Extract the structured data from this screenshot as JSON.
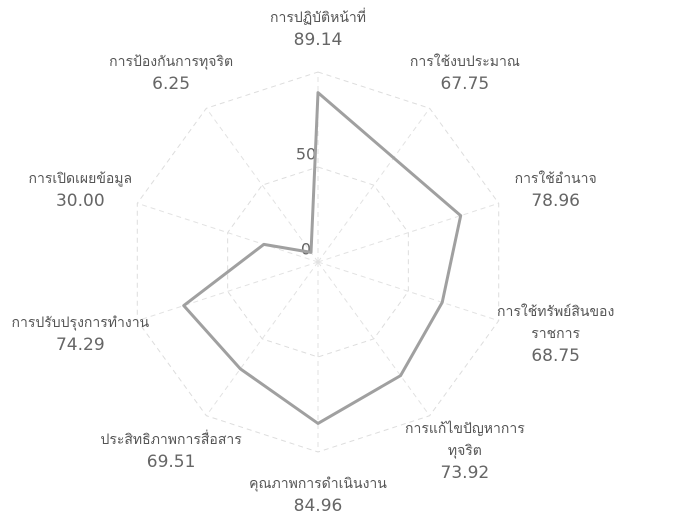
{
  "chart_data": {
    "type": "radar",
    "categories": [
      "การปฏิบัติหน้าที่",
      "การใช้งบประมาณ",
      "การใช้อำนาจ",
      "การใช้ทรัพย์สินของราชการ",
      "การแก้ไขปัญหาการทุจริต",
      "คุณภาพการดำเนินงาน",
      "ประสิทธิภาพการสื่อสาร",
      "การปรับปรุงการทำงาน",
      "การเปิดเผยข้อมูล",
      "การป้องกันการทุจริต"
    ],
    "values": [
      89.14,
      67.75,
      78.96,
      68.75,
      73.92,
      84.96,
      69.51,
      74.29,
      30.0,
      6.25
    ],
    "value_labels": [
      "89.14",
      "67.75",
      "78.96",
      "68.75",
      "73.92",
      "84.96",
      "69.51",
      "74.29",
      "30.00",
      "6.25"
    ],
    "color": "#a0a0a0",
    "ylim": [
      0,
      100
    ],
    "yticks": [
      0,
      50
    ],
    "grid": true
  }
}
